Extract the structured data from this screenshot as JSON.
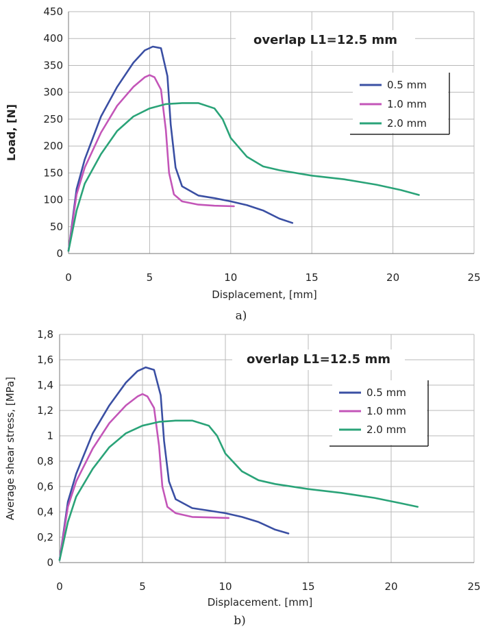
{
  "charts": [
    {
      "caption": "a)",
      "annotation": "overlap L1=12.5 mm",
      "chart_data": {
        "type": "line",
        "xlabel": "Displacement, [mm]",
        "ylabel": "Load, [N]",
        "xlim": [
          0,
          25
        ],
        "ylim": [
          0,
          450
        ],
        "x_ticks": [
          0,
          5,
          10,
          15,
          20,
          25
        ],
        "y_ticks": [
          0,
          50,
          100,
          150,
          200,
          250,
          300,
          350,
          400,
          450
        ],
        "x_tick_labels": [
          "0",
          "5",
          "10",
          "15",
          "20",
          "25"
        ],
        "y_tick_labels": [
          "0",
          "50",
          "100",
          "150",
          "200",
          "250",
          "300",
          "350",
          "400",
          "450"
        ],
        "grid": true,
        "legend_position": "right",
        "series": [
          {
            "name": "0.5 mm",
            "color": "#3a4fa3",
            "points": [
              [
                0,
                5
              ],
              [
                0.5,
                120
              ],
              [
                1,
                175
              ],
              [
                2,
                255
              ],
              [
                3,
                310
              ],
              [
                4,
                355
              ],
              [
                4.7,
                378
              ],
              [
                5.2,
                385
              ],
              [
                5.7,
                382
              ],
              [
                6.1,
                330
              ],
              [
                6.3,
                240
              ],
              [
                6.6,
                160
              ],
              [
                7,
                125
              ],
              [
                8,
                108
              ],
              [
                9,
                103
              ],
              [
                10,
                97
              ],
              [
                11,
                90
              ],
              [
                12,
                80
              ],
              [
                13,
                65
              ],
              [
                13.8,
                57
              ]
            ]
          },
          {
            "name": "1.0 mm",
            "color": "#c355b8",
            "points": [
              [
                0,
                5
              ],
              [
                0.5,
                110
              ],
              [
                1,
                160
              ],
              [
                2,
                225
              ],
              [
                3,
                275
              ],
              [
                4,
                310
              ],
              [
                4.7,
                328
              ],
              [
                5,
                332
              ],
              [
                5.3,
                328
              ],
              [
                5.7,
                305
              ],
              [
                6,
                230
              ],
              [
                6.2,
                150
              ],
              [
                6.5,
                110
              ],
              [
                7,
                97
              ],
              [
                8,
                91
              ],
              [
                9,
                89
              ],
              [
                10.2,
                88
              ]
            ]
          },
          {
            "name": "2.0 mm",
            "color": "#2aa378",
            "points": [
              [
                0,
                5
              ],
              [
                0.5,
                80
              ],
              [
                1,
                130
              ],
              [
                2,
                185
              ],
              [
                3,
                228
              ],
              [
                4,
                255
              ],
              [
                5,
                270
              ],
              [
                6,
                278
              ],
              [
                7,
                280
              ],
              [
                8,
                280
              ],
              [
                9,
                270
              ],
              [
                9.5,
                250
              ],
              [
                10,
                215
              ],
              [
                11,
                180
              ],
              [
                12,
                162
              ],
              [
                13,
                155
              ],
              [
                15,
                145
              ],
              [
                17,
                138
              ],
              [
                19,
                128
              ],
              [
                20.5,
                118
              ],
              [
                21.6,
                109
              ]
            ]
          }
        ]
      }
    },
    {
      "caption": "b)",
      "annotation": "overlap  L1=12.5 mm",
      "chart_data": {
        "type": "line",
        "xlabel": "Displacement. [mm]",
        "ylabel": "Average shear stress, [MPa]",
        "xlim": [
          0,
          25
        ],
        "ylim": [
          0,
          1.8
        ],
        "x_ticks": [
          0,
          5,
          10,
          15,
          20,
          25
        ],
        "y_ticks": [
          0,
          0.2,
          0.4,
          0.6,
          0.8,
          1,
          1.2,
          1.4,
          1.6,
          1.8
        ],
        "x_tick_labels": [
          "0",
          "5",
          "10",
          "15",
          "20",
          "25"
        ],
        "y_tick_labels": [
          "0",
          "0,2",
          "0,4",
          "0,6",
          "0,8",
          "1",
          "1,2",
          "1,4",
          "1,6",
          "1,8"
        ],
        "grid": true,
        "legend_position": "right",
        "series": [
          {
            "name": "0.5 mm",
            "color": "#3a4fa3",
            "points": [
              [
                0,
                0.02
              ],
              [
                0.5,
                0.48
              ],
              [
                1,
                0.7
              ],
              [
                2,
                1.02
              ],
              [
                3,
                1.24
              ],
              [
                4,
                1.42
              ],
              [
                4.7,
                1.51
              ],
              [
                5.2,
                1.54
              ],
              [
                5.7,
                1.52
              ],
              [
                6.1,
                1.32
              ],
              [
                6.3,
                0.96
              ],
              [
                6.6,
                0.64
              ],
              [
                7,
                0.5
              ],
              [
                8,
                0.43
              ],
              [
                9,
                0.41
              ],
              [
                10,
                0.39
              ],
              [
                11,
                0.36
              ],
              [
                12,
                0.32
              ],
              [
                13,
                0.26
              ],
              [
                13.8,
                0.23
              ]
            ]
          },
          {
            "name": "1.0 mm",
            "color": "#c355b8",
            "points": [
              [
                0,
                0.02
              ],
              [
                0.5,
                0.44
              ],
              [
                1,
                0.64
              ],
              [
                2,
                0.9
              ],
              [
                3,
                1.1
              ],
              [
                4,
                1.24
              ],
              [
                4.7,
                1.31
              ],
              [
                5,
                1.33
              ],
              [
                5.3,
                1.31
              ],
              [
                5.7,
                1.22
              ],
              [
                6,
                0.92
              ],
              [
                6.2,
                0.6
              ],
              [
                6.5,
                0.44
              ],
              [
                7,
                0.39
              ],
              [
                8,
                0.36
              ],
              [
                9,
                0.356
              ],
              [
                10.2,
                0.352
              ]
            ]
          },
          {
            "name": "2.0 mm",
            "color": "#2aa378",
            "points": [
              [
                0,
                0.02
              ],
              [
                0.5,
                0.32
              ],
              [
                1,
                0.52
              ],
              [
                2,
                0.74
              ],
              [
                3,
                0.91
              ],
              [
                4,
                1.02
              ],
              [
                5,
                1.08
              ],
              [
                6,
                1.11
              ],
              [
                7,
                1.12
              ],
              [
                8,
                1.12
              ],
              [
                9,
                1.08
              ],
              [
                9.5,
                1.0
              ],
              [
                10,
                0.86
              ],
              [
                11,
                0.72
              ],
              [
                12,
                0.65
              ],
              [
                13,
                0.62
              ],
              [
                15,
                0.58
              ],
              [
                17,
                0.55
              ],
              [
                19,
                0.51
              ],
              [
                20.5,
                0.47
              ],
              [
                21.6,
                0.44
              ]
            ]
          }
        ]
      }
    }
  ]
}
